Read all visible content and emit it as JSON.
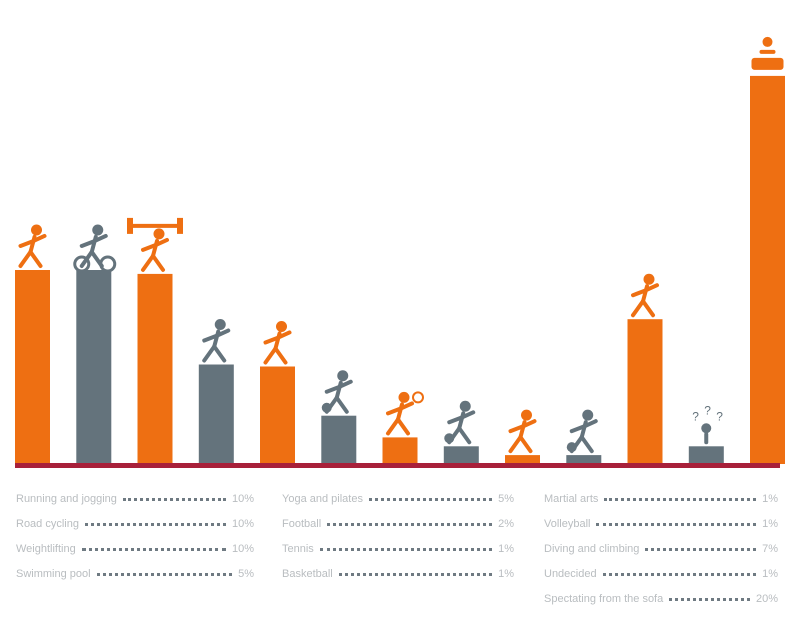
{
  "chart_data": {
    "type": "bar",
    "title": "",
    "xlabel": "",
    "ylabel": "",
    "ylim": [
      0,
      400
    ],
    "categories": [
      "Running",
      "Cycling",
      "Weightlifting",
      "Swimming",
      "Yoga",
      "Football",
      "Tennis",
      "Basketball",
      "Martial arts",
      "Volleyball",
      "Diving / Climbing",
      "Undecided",
      "Spectating"
    ],
    "values": [
      197,
      197,
      193,
      101,
      99,
      49,
      27,
      18,
      9,
      9,
      147,
      18,
      394
    ],
    "series_colors": [
      "#ee6f12",
      "#64737c",
      "#ee6f12",
      "#64737c",
      "#ee6f12",
      "#64737c",
      "#ee6f12",
      "#64737c",
      "#ee6f12",
      "#64737c",
      "#ee6f12",
      "#64737c",
      "#ee6f12"
    ],
    "icons": [
      "runner-icon",
      "cyclist-icon",
      "weightlifter-icon",
      "swimmer-icon",
      "yoga-icon",
      "football-icon",
      "tennis-icon",
      "basketball-icon",
      "karate-icon",
      "volleyball-icon",
      "diver-climber-icon",
      "confused-person-icon",
      "spectator-icon"
    ]
  },
  "colors": {
    "orange": "#ee6f12",
    "gray": "#64737c",
    "baseline": "#a8203a"
  },
  "legend": {
    "col1": [
      {
        "name": "Running and jogging",
        "value": "10%"
      },
      {
        "name": "Road cycling",
        "value": "10%"
      },
      {
        "name": "Weightlifting",
        "value": "10%"
      },
      {
        "name": "Swimming pool",
        "value": "5%"
      }
    ],
    "col2": [
      {
        "name": "Yoga and pilates",
        "value": "5%"
      },
      {
        "name": "Football",
        "value": "2%"
      },
      {
        "name": "Tennis",
        "value": "1%"
      },
      {
        "name": "Basketball",
        "value": "1%"
      }
    ],
    "col3": [
      {
        "name": "Martial arts",
        "value": "1%"
      },
      {
        "name": "Volleyball",
        "value": "1%"
      },
      {
        "name": "Diving and climbing",
        "value": "7%"
      },
      {
        "name": "Undecided",
        "value": "1%"
      },
      {
        "name": "Spectating from the sofa",
        "value": "20%"
      }
    ]
  }
}
